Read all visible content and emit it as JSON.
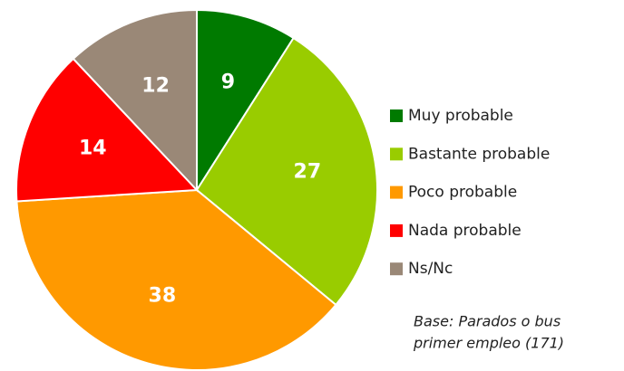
{
  "chart_data": {
    "type": "pie",
    "categories": [
      "Muy probable",
      "Bastante probable",
      "Poco probable",
      "Nada probable",
      "Ns/Nc"
    ],
    "values": [
      9,
      27,
      38,
      14,
      12
    ],
    "colors": [
      "#007a00",
      "#99cc00",
      "#ff9900",
      "#ff0000",
      "#9a8877"
    ],
    "note": [
      "Base: Parados o bus",
      "primer empleo (171)"
    ]
  }
}
